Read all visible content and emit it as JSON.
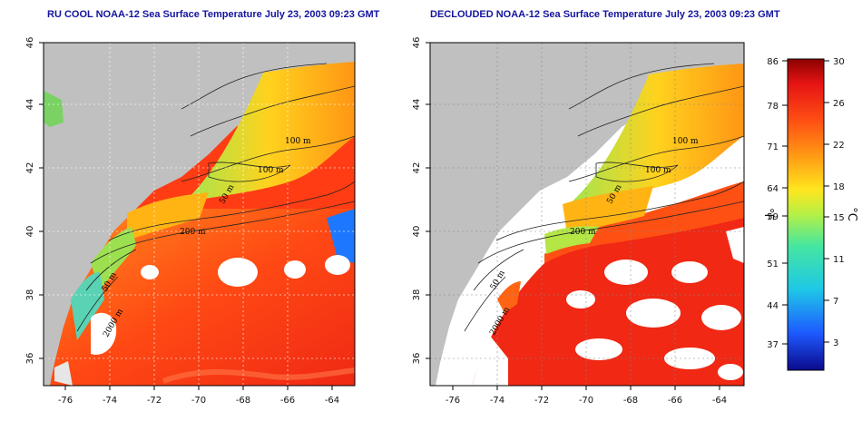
{
  "panels": [
    {
      "id": "left",
      "title": "RU COOL NOAA-12 Sea Surface Temperature July 23, 2003 09:23 GMT",
      "x_ticks": [
        "-76",
        "-74",
        "-72",
        "-70",
        "-68",
        "-66",
        "-64"
      ],
      "y_ticks": [
        "36",
        "38",
        "40",
        "42",
        "44",
        "46"
      ],
      "contour_labels": [
        "100 m",
        "100 m",
        "50 m",
        "200 m",
        "50 m",
        "2000 m"
      ]
    },
    {
      "id": "right",
      "title": "DECLOUDED NOAA-12 Sea Surface Temperature July 23, 2003 09:23 GMT",
      "x_ticks": [
        "-76",
        "-74",
        "-72",
        "-70",
        "-68",
        "-66",
        "-64"
      ],
      "y_ticks": [
        "36",
        "38",
        "40",
        "42",
        "44",
        "46"
      ],
      "contour_labels": [
        "100 m",
        "100 m",
        "50 m",
        "200 m",
        "50 m",
        "2000 m"
      ]
    }
  ],
  "colorbar": {
    "fahrenheit_unit": "°F",
    "celsius_unit": "°C",
    "fahrenheit_ticks": [
      "86",
      "78",
      "71",
      "64",
      "59",
      "51",
      "44",
      "37"
    ],
    "celsius_ticks": [
      "30",
      "26",
      "22",
      "18",
      "15",
      "11",
      "7",
      "3"
    ],
    "scale_range_c": [
      0,
      30
    ],
    "colors": [
      "#0a0a8c",
      "#1e5aff",
      "#1ec8e6",
      "#46e6a0",
      "#b4f046",
      "#ffe61e",
      "#ffa014",
      "#ff5014",
      "#e61414",
      "#8c0000"
    ]
  },
  "colors": {
    "land": "#c0c0c0",
    "cloud": "#ffffff",
    "title": "#1414a0"
  }
}
